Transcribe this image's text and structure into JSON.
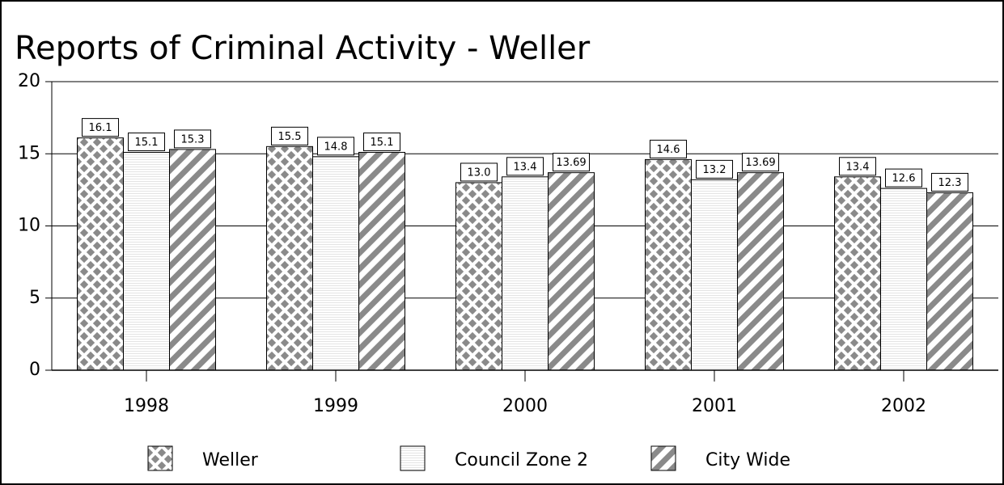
{
  "chart_data": {
    "type": "bar",
    "title": "Reports of Criminal Activity - Weller",
    "categories": [
      "1998",
      "1999",
      "2000",
      "2001",
      "2002"
    ],
    "series": [
      {
        "name": "Weller",
        "color": "#8a8a8a",
        "values": [
          16.1,
          15.5,
          13.0,
          14.6,
          13.4
        ],
        "value_labels": [
          "16.1",
          "15.5",
          "13.0",
          "14.6",
          "13.4"
        ]
      },
      {
        "name": "Council Zone 2",
        "color": "#e4e4e4",
        "values": [
          15.1,
          14.8,
          13.4,
          13.2,
          12.6
        ],
        "value_labels": [
          "15.1",
          "14.8",
          "13.4",
          "13.2",
          "12.6"
        ]
      },
      {
        "name": "City Wide",
        "color": "#8a8a8a",
        "values": [
          15.3,
          15.1,
          13.69,
          13.69,
          12.3
        ],
        "value_labels": [
          "15.3",
          "15.1",
          "13.69",
          "13.69",
          "12.3"
        ]
      }
    ],
    "ylim": [
      0,
      20
    ],
    "yticks": [
      0,
      5,
      10,
      15,
      20
    ],
    "grid": true,
    "legend": "bottom"
  }
}
